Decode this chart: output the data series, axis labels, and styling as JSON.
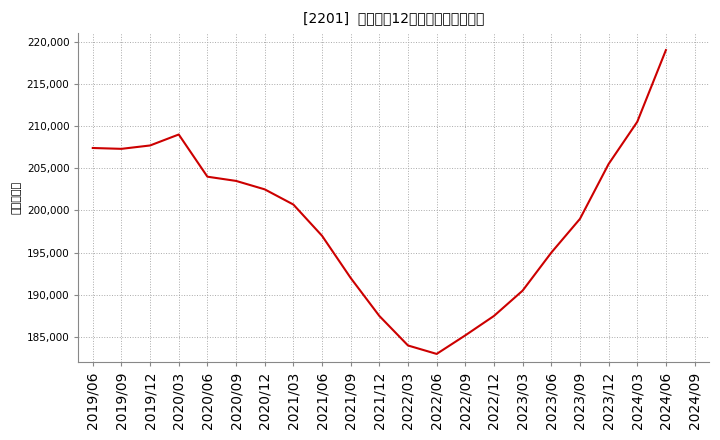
{
  "title": "[2201]  売上高の12か月移動合計の推移",
  "ylabel": "（百万円）",
  "line_color": "#cc0000",
  "background_color": "#ffffff",
  "grid_color": "#aaaaaa",
  "dates": [
    "2019/06",
    "2019/09",
    "2019/12",
    "2020/03",
    "2020/06",
    "2020/09",
    "2020/12",
    "2021/03",
    "2021/06",
    "2021/09",
    "2021/12",
    "2022/03",
    "2022/06",
    "2022/09",
    "2022/12",
    "2023/03",
    "2023/06",
    "2023/09",
    "2023/12",
    "2024/03",
    "2024/06",
    "2024/09"
  ],
  "values": [
    207400,
    207300,
    207700,
    209000,
    204000,
    203500,
    202500,
    200700,
    197000,
    192000,
    187500,
    184000,
    183000,
    185200,
    187500,
    190500,
    195000,
    199000,
    205500,
    210500,
    219000,
    null
  ],
  "ylim": [
    182000,
    221000
  ],
  "yticks": [
    185000,
    190000,
    195000,
    200000,
    205000,
    210000,
    215000,
    220000
  ],
  "title_fontsize": 11,
  "tick_fontsize": 7.5,
  "ylabel_fontsize": 8
}
